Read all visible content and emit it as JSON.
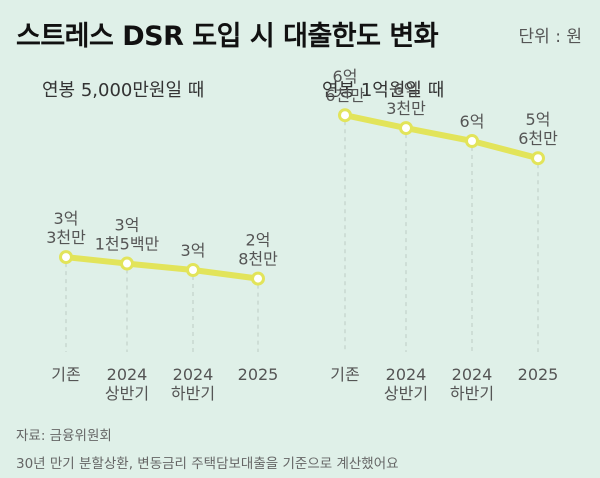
{
  "title": "스트레스 DSR 도입 시 대출한도 변화",
  "unit": "단위 : 원",
  "source": "자료: 금융위원회",
  "note": "30년 만기 분할상환, 변동금리 주택담보대출을 기준으로 계산했어요",
  "colors": {
    "line": "#e2e45a",
    "marker_fill": "#ffffff",
    "background": "#dff0e8",
    "gridline": "#c4d1cb"
  },
  "chart_data": [
    {
      "type": "line",
      "title": "연봉 5,000만원일 때",
      "categories": [
        [
          "기존"
        ],
        [
          "2024",
          "상반기"
        ],
        [
          "2024",
          "하반기"
        ],
        [
          "2025"
        ]
      ],
      "values": [
        330000000,
        315000000,
        300000000,
        280000000
      ],
      "data_labels": [
        [
          "3억",
          "3천만"
        ],
        [
          "3억",
          "1천5백만"
        ],
        [
          "3억"
        ],
        [
          "2억",
          "8천만"
        ]
      ],
      "ylim": [
        0,
        700000000
      ]
    },
    {
      "type": "line",
      "title": "연봉 1억원일 때",
      "categories": [
        [
          "기존"
        ],
        [
          "2024",
          "상반기"
        ],
        [
          "2024",
          "하반기"
        ],
        [
          "2025"
        ]
      ],
      "values": [
        660000000,
        630000000,
        600000000,
        560000000
      ],
      "data_labels": [
        [
          "6억",
          "6천만"
        ],
        [
          "6억",
          "3천만"
        ],
        [
          "6억"
        ],
        [
          "5억",
          "6천만"
        ]
      ],
      "ylim": [
        0,
        700000000
      ]
    }
  ]
}
